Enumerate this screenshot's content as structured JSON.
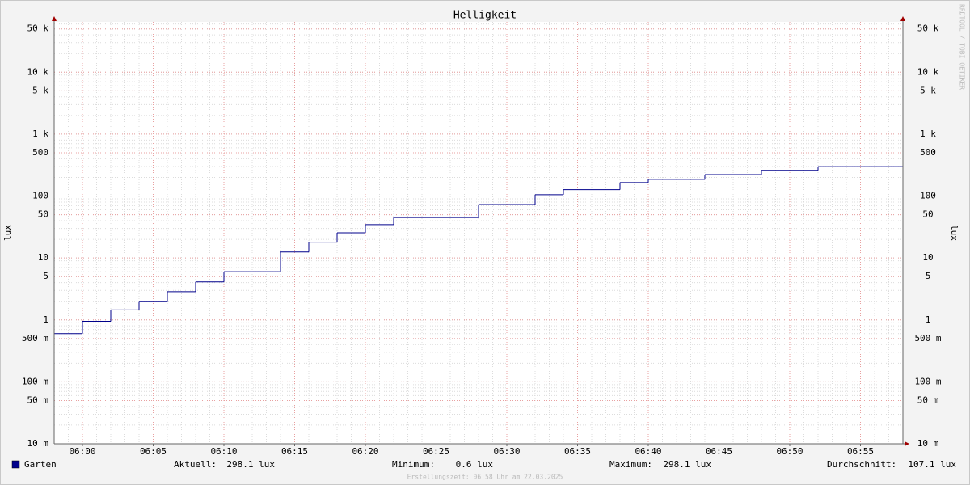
{
  "chart_data": {
    "type": "step",
    "title": "Helligkeit",
    "y_label": "lux",
    "watermark": "RRDTOOL / TOBI OETIKER",
    "log_scale": true,
    "grid": true,
    "x": [
      "05:58",
      "06:00",
      "06:02",
      "06:04",
      "06:06",
      "06:08",
      "06:10",
      "06:14",
      "06:16",
      "06:18",
      "06:20",
      "06:22",
      "06:28",
      "06:32",
      "06:34",
      "06:38",
      "06:40",
      "06:44",
      "06:48",
      "06:52",
      "06:58"
    ],
    "series": [
      {
        "name": "Garten",
        "color": "#00008b",
        "values": [
          0.6,
          0.95,
          1.45,
          2.0,
          2.85,
          4.1,
          6.0,
          12.5,
          18,
          25.5,
          34.5,
          45,
          73,
          105,
          127,
          165,
          186,
          222,
          260,
          298.1,
          298.1
        ]
      }
    ],
    "xlim": [
      "05:58",
      "06:58"
    ],
    "xticks": [
      "06:00",
      "06:05",
      "06:10",
      "06:15",
      "06:20",
      "06:25",
      "06:30",
      "06:35",
      "06:40",
      "06:45",
      "06:50",
      "06:55"
    ],
    "ylim": [
      0.01,
      65000
    ],
    "yticks": [
      {
        "value": 0.01,
        "label": "10 m"
      },
      {
        "value": 0.05,
        "label": "50 m"
      },
      {
        "value": 0.1,
        "label": "100 m"
      },
      {
        "value": 0.5,
        "label": "500 m"
      },
      1,
      5,
      10,
      50,
      100,
      500,
      {
        "value": 1000,
        "label": "1 k"
      },
      {
        "value": 5000,
        "label": "5 k"
      },
      {
        "value": 10000,
        "label": "10 k"
      },
      {
        "value": 50000,
        "label": "50 k"
      }
    ],
    "stats": [
      {
        "label": "Aktuell:",
        "value": "298.1 lux"
      },
      {
        "label": "Minimum:",
        "value": "0.6 lux"
      },
      {
        "label": "Maximum:",
        "value": "298.1 lux"
      },
      {
        "label": "Durchschnitt:",
        "value": "107.1 lux"
      }
    ],
    "footer": "Erstellungszeit: 06:58 Uhr am 22.03.2025"
  }
}
